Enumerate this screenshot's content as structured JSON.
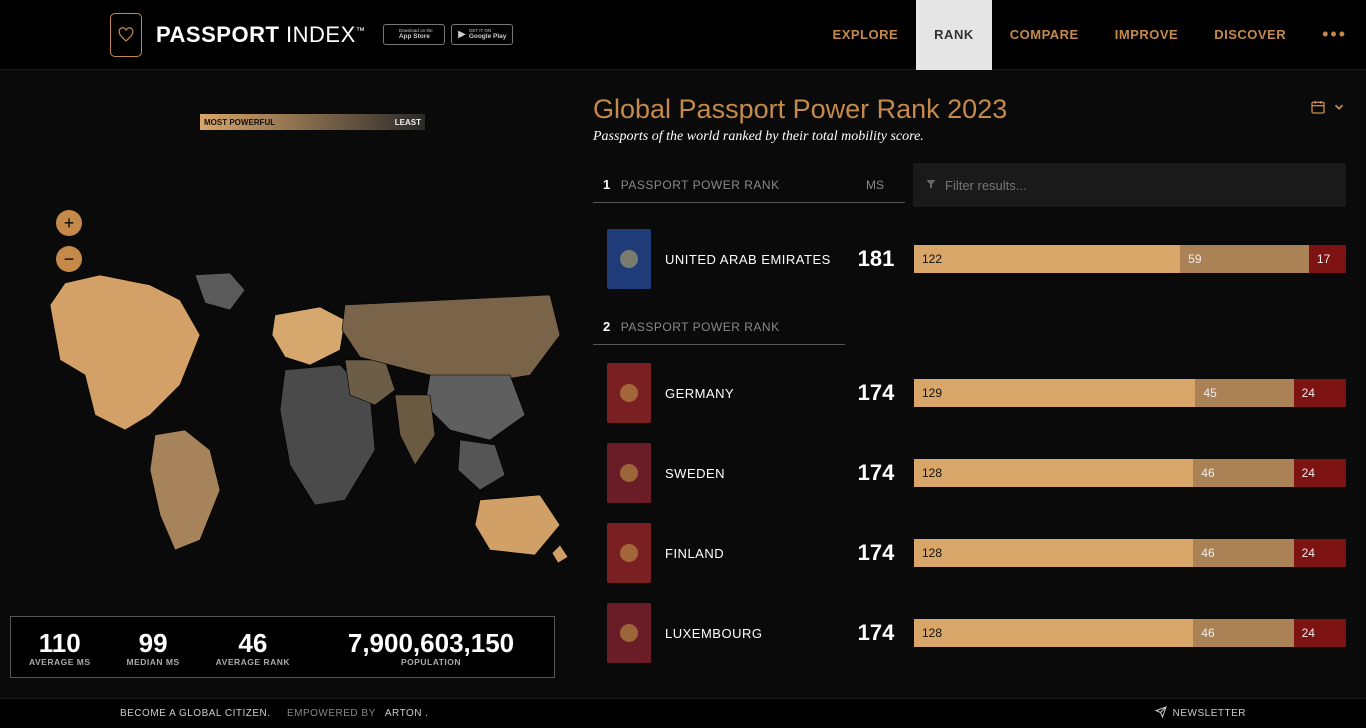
{
  "header": {
    "brand_bold": "PASSPORT",
    "brand_light": " INDEX",
    "tm": "™",
    "app_store": {
      "l1": "Download on the",
      "l2": "App Store"
    },
    "google_play": {
      "l1": "GET IT ON",
      "l2": "Google Play"
    },
    "nav": {
      "explore": "EXPLORE",
      "rank": "RANK",
      "compare": "COMPARE",
      "improve": "IMPROVE",
      "discover": "DISCOVER"
    }
  },
  "legend": {
    "most": "MOST POWERFUL",
    "least": "LEAST"
  },
  "zoom": {
    "in": "+",
    "out": "−"
  },
  "map_gradient": {
    "start": "#d9a66a",
    "end": "#2a2a2a"
  },
  "stats": {
    "avg_ms": {
      "value": "110",
      "label": "AVERAGE MS"
    },
    "median_ms": {
      "value": "99",
      "label": "MEDIAN MS"
    },
    "avg_rank": {
      "value": "46",
      "label": "AVERAGE RANK"
    },
    "population": {
      "value": "7,900,603,150",
      "label": "POPULATION"
    }
  },
  "title": "Global Passport Power Rank 2023",
  "subtitle": "Passports of the world ranked by their total mobility score.",
  "columns": {
    "passport_power_rank": "PASSPORT POWER RANK",
    "ms": "MS",
    "filter_placeholder": "Filter results..."
  },
  "bar_colors": {
    "visa_free": "#d9a66a",
    "visa_on_arrival": "#aa8255",
    "visa_required": "#7e1313"
  },
  "bar_max_total": 198,
  "groups": [
    {
      "rank": "1",
      "countries": [
        {
          "name": "UNITED ARAB EMIRATES",
          "ms": "181",
          "passport_color": "#1f3b78",
          "crest_color": "#c7b26a",
          "segments": {
            "visa_free": 122,
            "visa_on_arrival": 59,
            "visa_required": 17
          }
        }
      ]
    },
    {
      "rank": "2",
      "countries": [
        {
          "name": "GERMANY",
          "ms": "174",
          "passport_color": "#7a1f22",
          "crest_color": "#c5a14a",
          "segments": {
            "visa_free": 129,
            "visa_on_arrival": 45,
            "visa_required": 24
          }
        },
        {
          "name": "SWEDEN",
          "ms": "174",
          "passport_color": "#6b1d27",
          "crest_color": "#c5a14a",
          "segments": {
            "visa_free": 128,
            "visa_on_arrival": 46,
            "visa_required": 24
          }
        },
        {
          "name": "FINLAND",
          "ms": "174",
          "passport_color": "#7a1f22",
          "crest_color": "#c5a14a",
          "segments": {
            "visa_free": 128,
            "visa_on_arrival": 46,
            "visa_required": 24
          }
        },
        {
          "name": "LUXEMBOURG",
          "ms": "174",
          "passport_color": "#6b1d27",
          "crest_color": "#c5a14a",
          "segments": {
            "visa_free": 128,
            "visa_on_arrival": 46,
            "visa_required": 24
          }
        }
      ]
    }
  ],
  "footer": {
    "citizen": "BECOME A GLOBAL CITIZEN.",
    "empowered": "EMPOWERED BY",
    "arton": "ARTON",
    "newsletter": "NEWSLETTER"
  }
}
